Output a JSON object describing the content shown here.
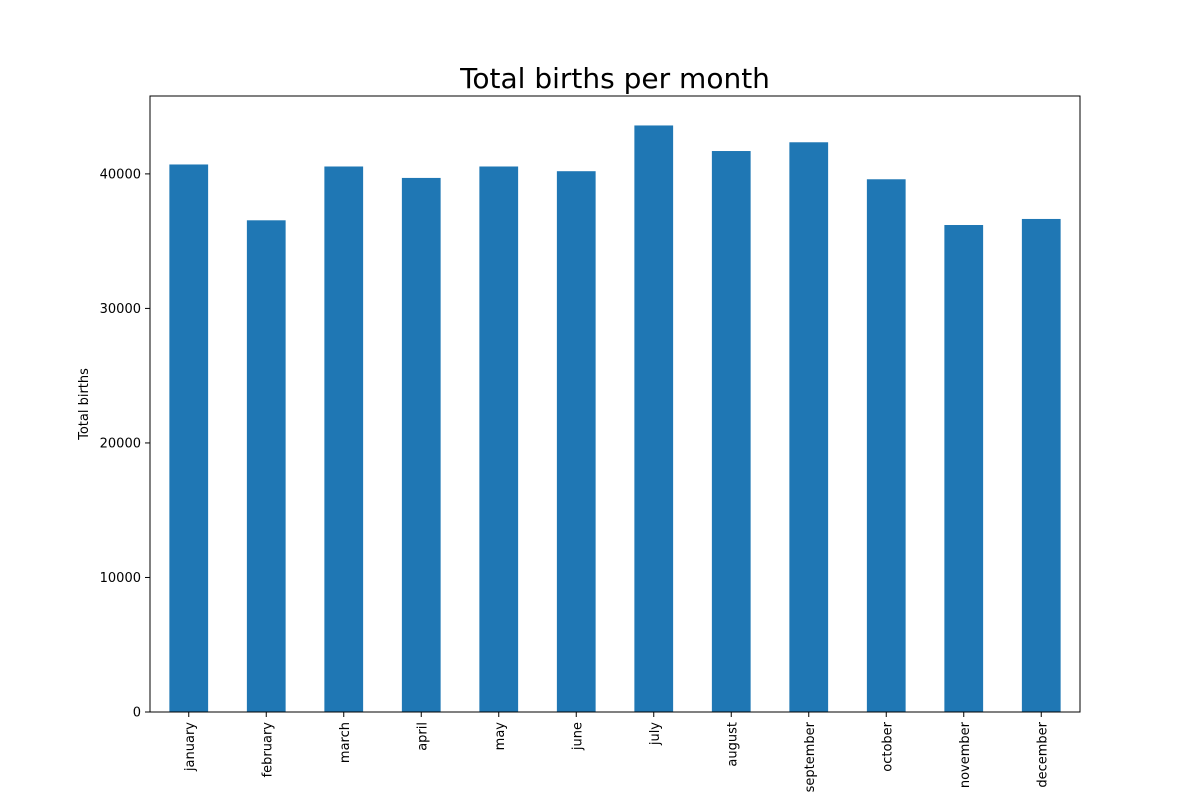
{
  "chart_data": {
    "type": "bar",
    "title": "Total births per month",
    "xlabel": "",
    "ylabel": "Total births",
    "categories": [
      "january",
      "february",
      "march",
      "april",
      "may",
      "june",
      "july",
      "august",
      "september",
      "october",
      "november",
      "december"
    ],
    "series": [
      {
        "values": [
          40700,
          36550,
          40550,
          39700,
          40550,
          40200,
          43600,
          41700,
          42350,
          39600,
          36200,
          36650
        ]
      }
    ],
    "ylim": [
      0,
      45790
    ],
    "yticks": [
      0,
      10000,
      20000,
      30000,
      40000
    ],
    "grid": false,
    "bar_color": "#1f77b4"
  }
}
